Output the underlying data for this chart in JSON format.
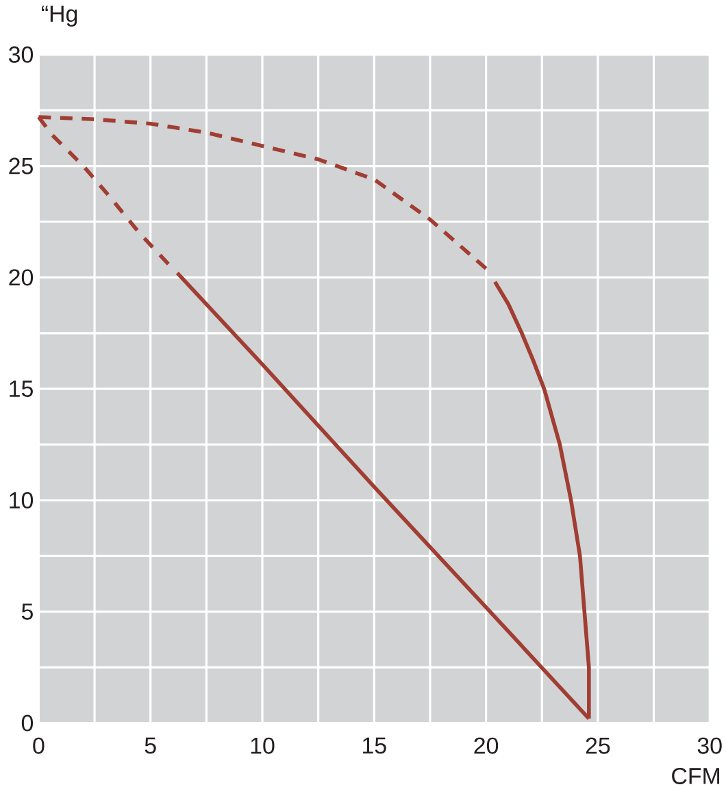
{
  "chart_data": {
    "type": "line",
    "xlabel": "CFM",
    "ylabel": "“Hg",
    "xlim": [
      0,
      30
    ],
    "ylim": [
      0,
      30
    ],
    "xticks": [
      0,
      {
        "value": 2.5,
        "label": null
      },
      5,
      {
        "value": 7.5,
        "label": null
      },
      10,
      {
        "value": 12.5,
        "label": null
      },
      15,
      {
        "value": 17.5,
        "label": null
      },
      20,
      {
        "value": 22.5,
        "label": null
      },
      25,
      {
        "value": 27.5,
        "label": null
      },
      30
    ],
    "yticks": [
      0,
      {
        "value": 2.5,
        "label": null
      },
      5,
      {
        "value": 7.5,
        "label": null
      },
      10,
      {
        "value": 12.5,
        "label": null
      },
      15,
      {
        "value": 17.5,
        "label": null
      },
      20,
      {
        "value": 22.5,
        "label": null
      },
      25,
      {
        "value": 27.5,
        "label": null
      },
      30
    ],
    "grid": true,
    "series": [
      {
        "color": "#a13d32",
        "line_style": "dashed",
        "x": [
          0,
          2.5,
          5,
          7.5,
          10,
          12.5,
          15,
          17.5,
          20.0
        ],
        "values": [
          27.2,
          27.1,
          26.9,
          26.5,
          25.9,
          25.3,
          24.4,
          22.6,
          20.4
        ]
      },
      {
        "color": "#a13d32",
        "line_style": "solid",
        "x": [
          20.4,
          21.0,
          21.6,
          22.1,
          22.6,
          23.3,
          23.8,
          24.2,
          24.4,
          24.6,
          24.6
        ],
        "values": [
          19.8,
          18.8,
          17.5,
          16.3,
          15.0,
          12.5,
          10.0,
          7.5,
          5.0,
          2.5,
          0.2
        ]
      },
      {
        "color": "#a13d32",
        "line_style": "dashed",
        "x": [
          0,
          0.6,
          2.0,
          3.2,
          4.5,
          5.8
        ],
        "values": [
          27.2,
          26.4,
          25.0,
          23.6,
          22.0,
          20.6
        ]
      },
      {
        "color": "#a13d32",
        "line_style": "solid",
        "x": [
          6.2,
          10,
          15,
          20,
          24.6
        ],
        "values": [
          20.2,
          16.1,
          10.6,
          5.2,
          0.2
        ]
      }
    ]
  }
}
